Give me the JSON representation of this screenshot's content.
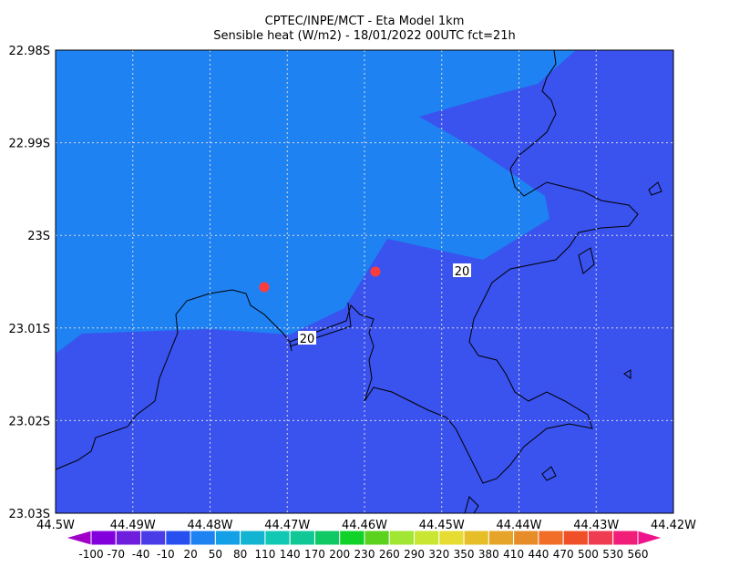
{
  "header": {
    "lines": [
      "CPTEC/INPE/MCT -  Eta Model 1km",
      "Sensible heat (W/m2) - 18/01/2022 00UTC fct=21h"
    ]
  },
  "axes": {
    "y_labels": [
      "22.98S",
      "22.99S",
      "23S",
      "23.01S",
      "23.02S",
      "23.03S"
    ],
    "x_labels": [
      "44.5W",
      "44.49W",
      "44.48W",
      "44.47W",
      "44.46W",
      "44.45W",
      "44.44W",
      "44.43W",
      "44.42W"
    ]
  },
  "contour_labels": [
    "20",
    "20"
  ],
  "colorbar": {
    "labels": [
      "-100",
      "-70",
      "-40",
      "-10",
      "20",
      "50",
      "80",
      "110",
      "140",
      "170",
      "200",
      "230",
      "260",
      "290",
      "320",
      "350",
      "380",
      "410",
      "440",
      "470",
      "500",
      "530",
      "560"
    ],
    "colors": [
      "#a000c8",
      "#8200dc",
      "#6e1edc",
      "#4a3ce6",
      "#2850f0",
      "#1e82f0",
      "#14a0e6",
      "#12b4d2",
      "#10c8b4",
      "#10c896",
      "#10c864",
      "#10d228",
      "#5ad21e",
      "#a0e632",
      "#c8e632",
      "#e6dc32",
      "#e6be28",
      "#e6a528",
      "#e68c28",
      "#f06e28",
      "#f05028",
      "#f03c50",
      "#f01e78",
      "#f0148c"
    ]
  }
}
